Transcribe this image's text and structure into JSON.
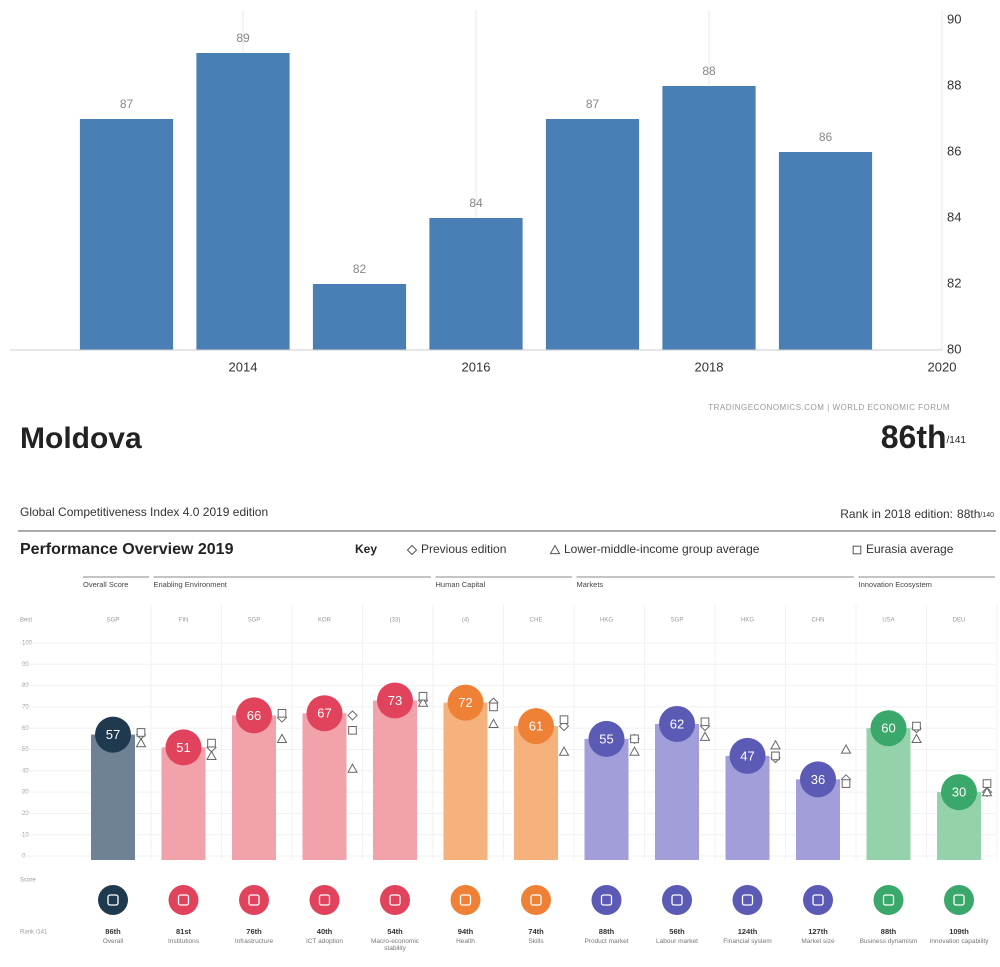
{
  "header": {
    "country": "Moldova",
    "rank": "86th",
    "rank_total": "/141",
    "edition": "Global Competitiveness Index 4.0 2019 edition",
    "prev_rank_label": "Rank in 2018 edition:",
    "prev_rank": "88th",
    "prev_rank_total": "/140"
  },
  "chart_data": [
    {
      "type": "bar",
      "x": [
        2013,
        2014,
        2015,
        2016,
        2017,
        2018,
        2019
      ],
      "values": [
        87,
        89,
        82,
        84,
        87,
        88,
        86
      ],
      "color": "#4a7fb5",
      "xlim": [
        2012,
        2020
      ],
      "xticks": [
        2014,
        2016,
        2018,
        2020
      ],
      "ylim": [
        80,
        90
      ],
      "yticks": [
        80,
        82,
        84,
        86,
        88,
        90
      ],
      "grid": "x",
      "source": "TRADINGECONOMICS.COM | WORLD ECONOMIC FORUM"
    },
    {
      "type": "pillar",
      "title": "Performance Overview 2019",
      "key_label": "Key",
      "best_label": "Best",
      "score_label": "Score",
      "rank_label": "Rank /141",
      "groups": [
        {
          "name": "Overall Score",
          "count": 1,
          "bar_color": "#6f8194",
          "circle_color": "#1f3a4f"
        },
        {
          "name": "Enabling Environment",
          "count": 4,
          "bar_color": "#f2a2aa",
          "circle_color": "#e2435c"
        },
        {
          "name": "Human Capital",
          "count": 2,
          "bar_color": "#f6b27c",
          "circle_color": "#ef8137"
        },
        {
          "name": "Markets",
          "count": 4,
          "bar_color": "#a19ed9",
          "circle_color": "#5b5ab5"
        },
        {
          "name": "Innovation Ecosystem",
          "count": 2,
          "bar_color": "#93d2ab",
          "circle_color": "#3aa86a"
        }
      ],
      "categories": [
        "Overall",
        "Institutions",
        "Infrastructure",
        "ICT adoption",
        "Macro-economic stability",
        "Health",
        "Skills",
        "Product market",
        "Labour market",
        "Financial system",
        "Market size",
        "Business dynamism",
        "Innovation capability"
      ],
      "best": [
        "SGP",
        "FIN",
        "SGP",
        "KOR",
        "(33)",
        "(4)",
        "CHE",
        "HKG",
        "SGP",
        "HKG",
        "CHN",
        "USA",
        "DEU"
      ],
      "values": [
        57,
        51,
        66,
        67,
        73,
        72,
        61,
        55,
        62,
        47,
        36,
        60,
        30
      ],
      "ranks": [
        "86th",
        "81st",
        "76th",
        "40th",
        "54th",
        "94th",
        "74th",
        "88th",
        "56th",
        "124th",
        "127th",
        "88th",
        "109th"
      ],
      "series": [
        {
          "name": "Previous edition",
          "symbol": "diamond",
          "values": [
            57,
            51,
            65,
            66,
            73,
            72,
            61,
            55,
            61,
            46,
            36,
            60,
            30
          ]
        },
        {
          "name": "Lower-middle-income group average",
          "symbol": "triangle",
          "values": [
            53,
            47,
            55,
            41,
            72,
            62,
            49,
            49,
            56,
            52,
            50,
            55,
            30
          ]
        },
        {
          "name": "Eurasia average",
          "symbol": "square",
          "values": [
            58,
            53,
            67,
            59,
            75,
            70,
            64,
            55,
            63,
            47,
            34,
            61,
            34
          ]
        }
      ],
      "ylim": [
        0,
        100
      ],
      "yticks": [
        0,
        10,
        20,
        30,
        40,
        50,
        60,
        70,
        80,
        90,
        100
      ]
    }
  ]
}
